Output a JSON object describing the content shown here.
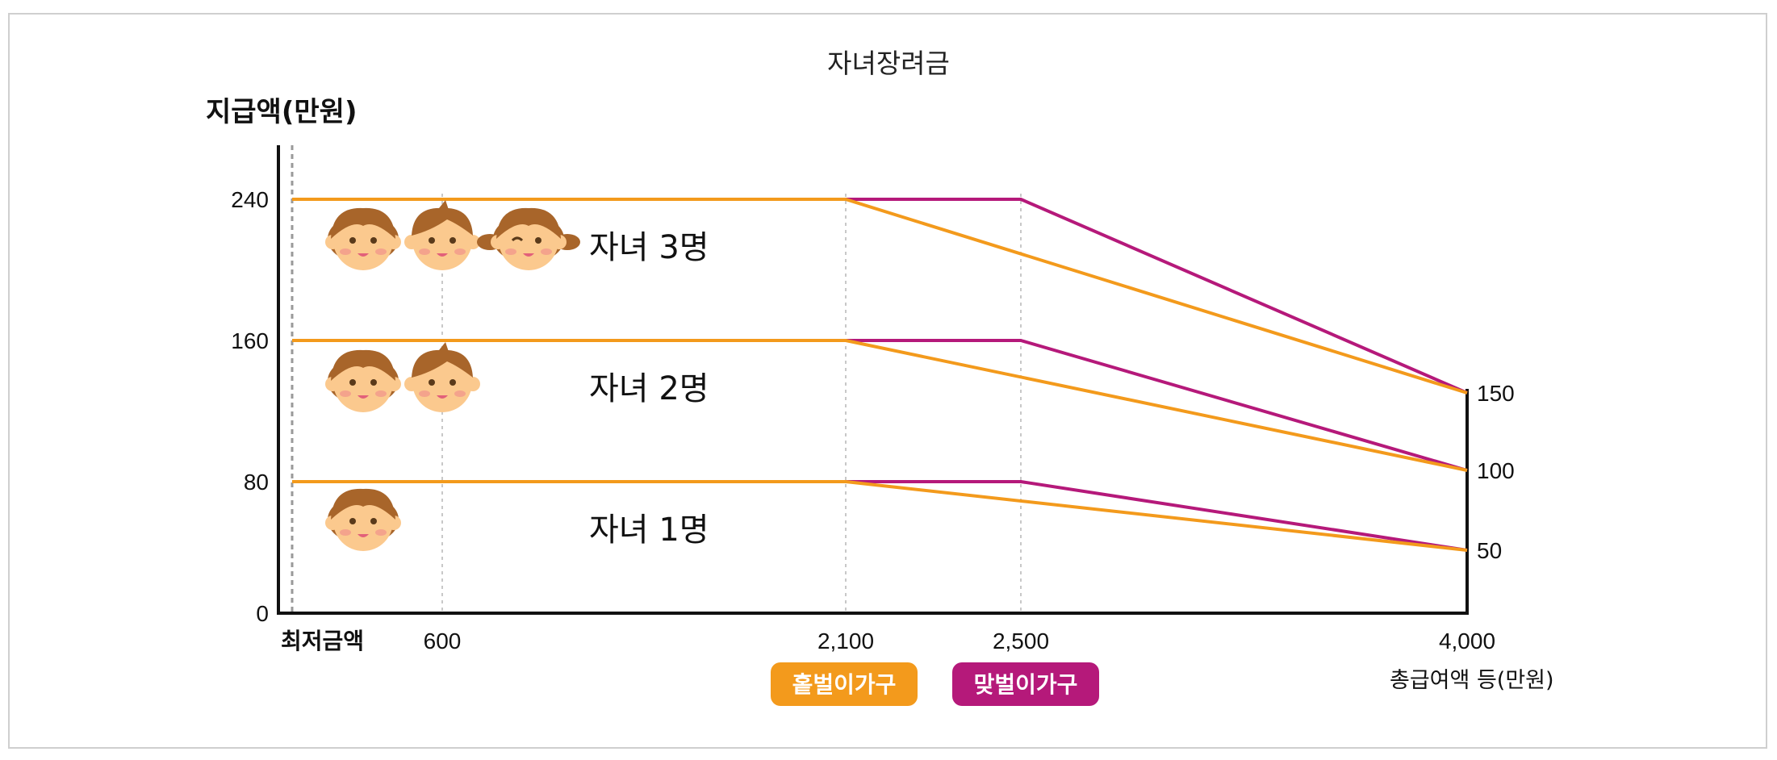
{
  "title": "자녀장려금",
  "chart_data": {
    "type": "line",
    "title": "자녀장려금",
    "ylabel": "지급액(만원)",
    "xlabel": "총급여액 등(만원)",
    "x_ticks": [
      {
        "value": 0,
        "label": "최저금액"
      },
      {
        "value": 600,
        "label": "600"
      },
      {
        "value": 2100,
        "label": "2,100"
      },
      {
        "value": 2500,
        "label": "2,500"
      },
      {
        "value": 4000,
        "label": "4,000"
      }
    ],
    "y_ticks_left": [
      "0",
      "80",
      "160",
      "240"
    ],
    "y_ticks_right": [
      "50",
      "100",
      "150"
    ],
    "ylim": [
      0,
      270
    ],
    "xlim": [
      0,
      4000
    ],
    "groups": [
      {
        "label": "자녀 1명",
        "children": 1,
        "series": [
          {
            "name": "홑벌이가구",
            "points": [
              [
                0,
                80
              ],
              [
                2100,
                80
              ],
              [
                4000,
                50
              ]
            ]
          },
          {
            "name": "맞벌이가구",
            "points": [
              [
                600,
                80
              ],
              [
                2500,
                80
              ],
              [
                4000,
                50
              ]
            ]
          }
        ]
      },
      {
        "label": "자녀 2명",
        "children": 2,
        "series": [
          {
            "name": "홑벌이가구",
            "points": [
              [
                0,
                160
              ],
              [
                2100,
                160
              ],
              [
                4000,
                100
              ]
            ]
          },
          {
            "name": "맞벌이가구",
            "points": [
              [
                600,
                160
              ],
              [
                2500,
                160
              ],
              [
                4000,
                100
              ]
            ]
          }
        ]
      },
      {
        "label": "자녀 3명",
        "children": 3,
        "series": [
          {
            "name": "홑벌이가구",
            "points": [
              [
                0,
                240
              ],
              [
                2100,
                240
              ],
              [
                4000,
                150
              ]
            ]
          },
          {
            "name": "맞벌이가구",
            "points": [
              [
                600,
                240
              ],
              [
                2500,
                240
              ],
              [
                4000,
                150
              ]
            ]
          }
        ]
      }
    ],
    "legend": [
      {
        "name": "홑벌이가구",
        "color": "#f39a1c"
      },
      {
        "name": "맞벌이가구",
        "color": "#b5197a"
      }
    ],
    "legend_position": "bottom"
  },
  "colors": {
    "single": "#f39a1c",
    "dual": "#b5197a",
    "face": "#fbc98e",
    "hair": "#a8652a",
    "cheek": "#f08a8a"
  }
}
